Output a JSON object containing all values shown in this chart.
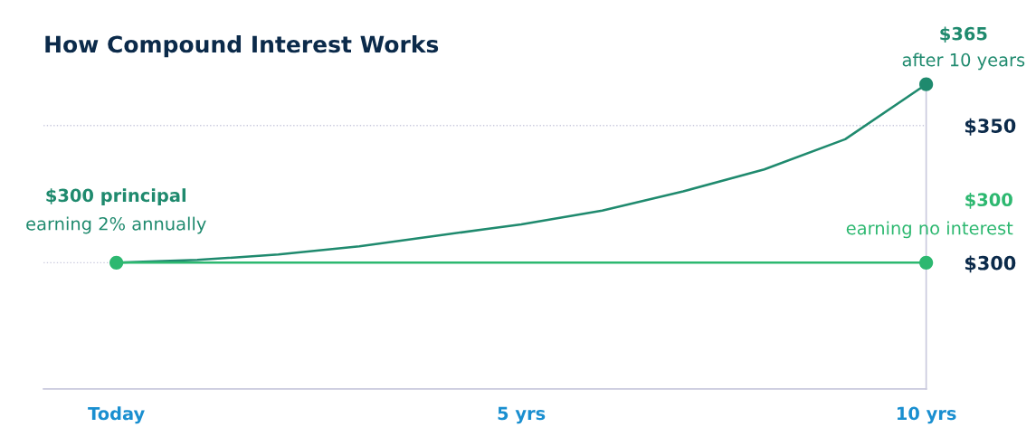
{
  "chart_data": {
    "type": "line",
    "title": "How Compound Interest Works",
    "series": [
      {
        "color": "#1f8a6e",
        "x": [
          0,
          1,
          2,
          3,
          4,
          5,
          6,
          7,
          8,
          9,
          10
        ],
        "values": [
          300,
          301,
          303,
          306,
          310,
          314,
          319,
          326,
          334,
          345,
          365
        ],
        "marker": "none"
      },
      {
        "color": "#2db870",
        "x": [
          0,
          10
        ],
        "values": [
          300,
          300
        ],
        "marker": "circle"
      },
      {
        "type": "scatter",
        "color": "#1f8a6e",
        "x": [
          10
        ],
        "values": [
          365
        ],
        "marker": "circle"
      }
    ],
    "xlim": [
      -0.9,
      10
    ],
    "xticks": [
      {
        "value": 0,
        "label": "Today"
      },
      {
        "value": 5,
        "label": "5 yrs"
      },
      {
        "value": 10,
        "label": "10 yrs"
      }
    ],
    "ylim": [
      254,
      365
    ],
    "yticks": [
      {
        "value": 300,
        "label": "$300"
      },
      {
        "value": 350,
        "label": "$350"
      }
    ],
    "grid": "y",
    "legend": false,
    "line_style": "solid",
    "annotations": [
      "$300 principal",
      "earning 2% annually",
      "$365",
      "after 10 years",
      "$300",
      "earning no interest"
    ]
  }
}
